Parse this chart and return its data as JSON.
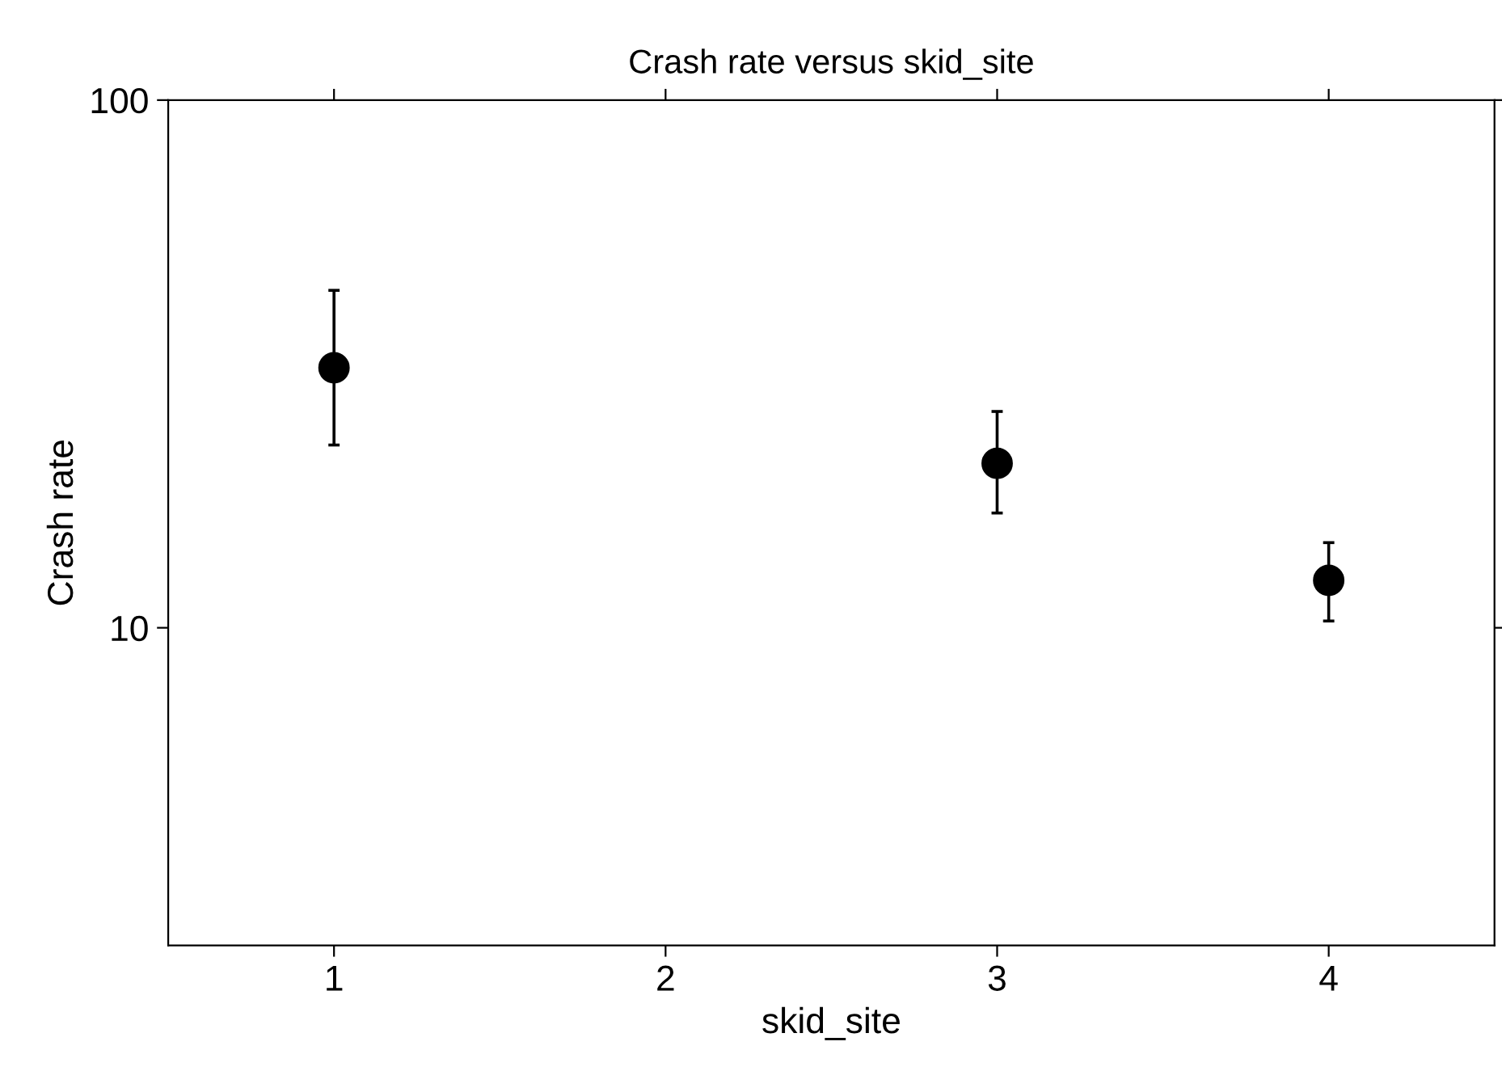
{
  "chart_data": {
    "type": "scatter",
    "title": "Crash rate versus skid_site",
    "xlabel": "skid_site",
    "ylabel": "Crash rate",
    "x": [
      1,
      3,
      4
    ],
    "values": [
      31.1,
      20.5,
      12.3
    ],
    "errors": [
      [
        22.2,
        43.6
      ],
      [
        16.5,
        25.7
      ],
      [
        10.3,
        14.5
      ]
    ],
    "color": "#000000",
    "marker": "circle",
    "log": "y",
    "xlim": [
      0.5,
      4.5
    ],
    "xticks": [
      1,
      2,
      3,
      4
    ],
    "ylim": [
      2.5,
      100
    ],
    "yticks": [
      10,
      100
    ],
    "grid": false,
    "legend": false
  }
}
